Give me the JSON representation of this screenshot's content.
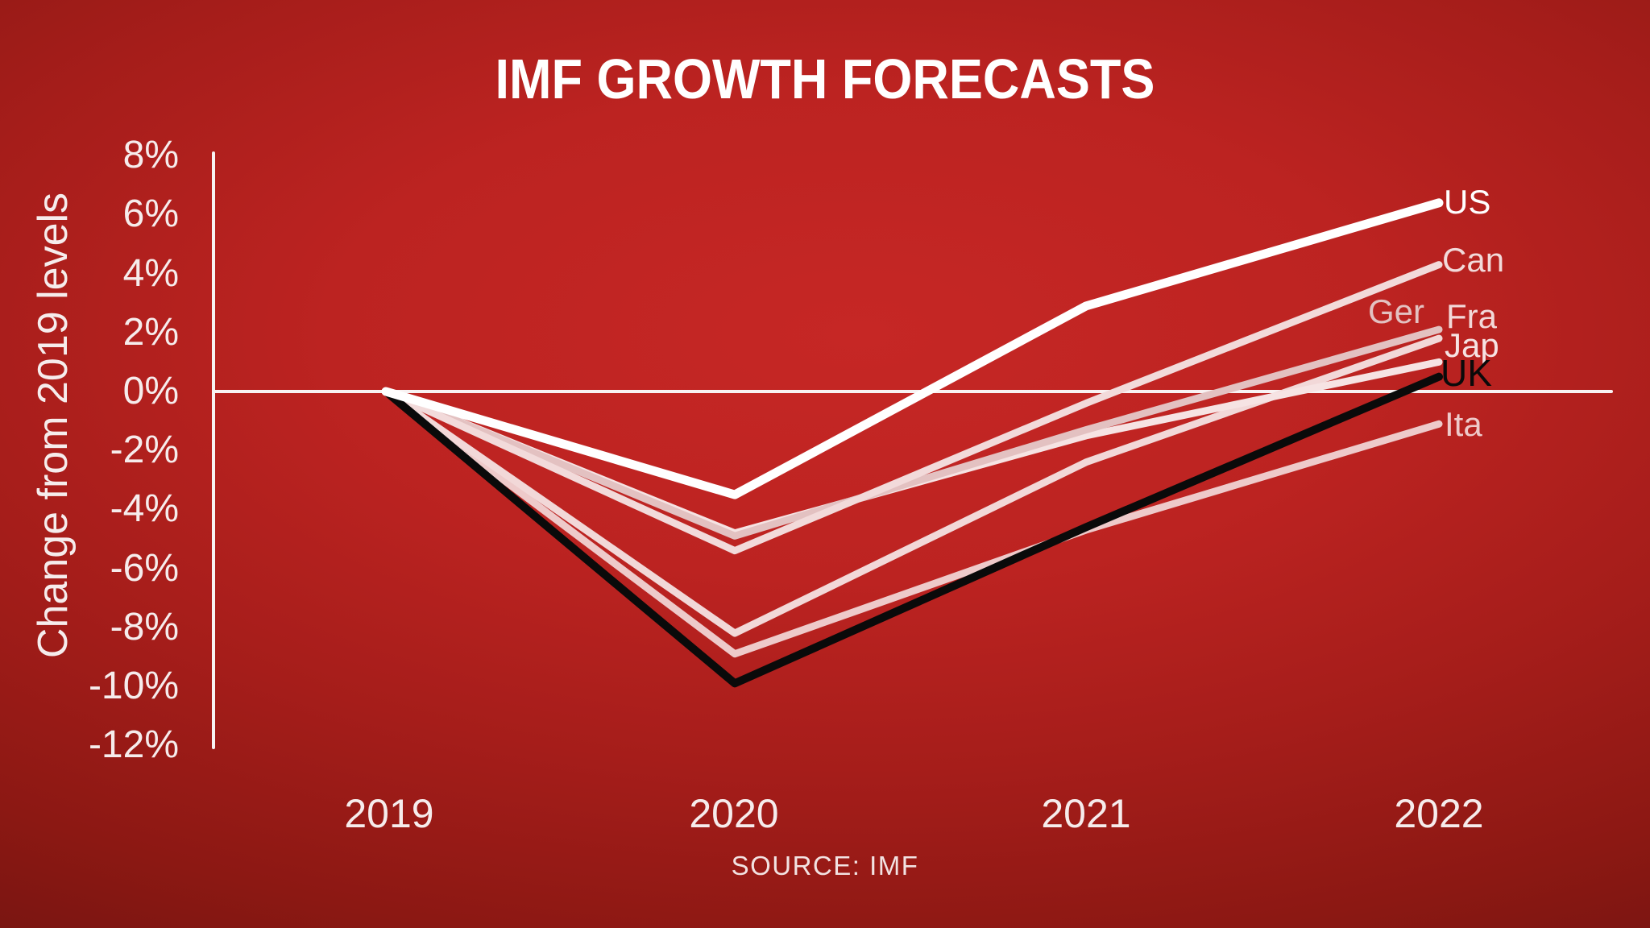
{
  "title": "IMF GROWTH FORECASTS",
  "source": "SOURCE: IMF",
  "y_axis": {
    "label": "Change from 2019 levels",
    "ticks": [
      "8%",
      "6%",
      "4%",
      "2%",
      "0%",
      "-2%",
      "-4%",
      "-6%",
      "-8%",
      "-10%",
      "-12%"
    ]
  },
  "x_axis": {
    "ticks": [
      "2019",
      "2020",
      "2021",
      "2022"
    ]
  },
  "chart_data": {
    "type": "line",
    "title": "IMF GROWTH FORECASTS",
    "ylabel": "Change from 2019 levels",
    "ylim": [
      -12,
      8
    ],
    "grid": false,
    "x": [
      2019,
      2020,
      2021,
      2022
    ],
    "series": [
      {
        "name": "US",
        "label": "US",
        "values": [
          0,
          -3.5,
          2.9,
          6.4
        ],
        "color": "#ffffff"
      },
      {
        "name": "Can",
        "label": "Can",
        "values": [
          0,
          -5.4,
          -0.4,
          4.3
        ],
        "color": "#f2dada"
      },
      {
        "name": "Ger",
        "label": "Ger",
        "values": [
          0,
          -4.9,
          -1.3,
          2.1
        ],
        "color": "#e3c1c1"
      },
      {
        "name": "Fra",
        "label": "Fra",
        "values": [
          0,
          -8.2,
          -2.4,
          1.8
        ],
        "color": "#f2d8d8"
      },
      {
        "name": "Jap",
        "label": "Jap",
        "values": [
          0,
          -4.8,
          -1.5,
          1.0
        ],
        "color": "#f6e3e3"
      },
      {
        "name": "UK",
        "label": "UK",
        "values": [
          0,
          -9.9,
          -4.6,
          0.5
        ],
        "color": "#0a0a0a"
      },
      {
        "name": "Ita",
        "label": "Ita",
        "values": [
          0,
          -8.9,
          -4.7,
          -1.1
        ],
        "color": "#eecaca"
      }
    ]
  }
}
